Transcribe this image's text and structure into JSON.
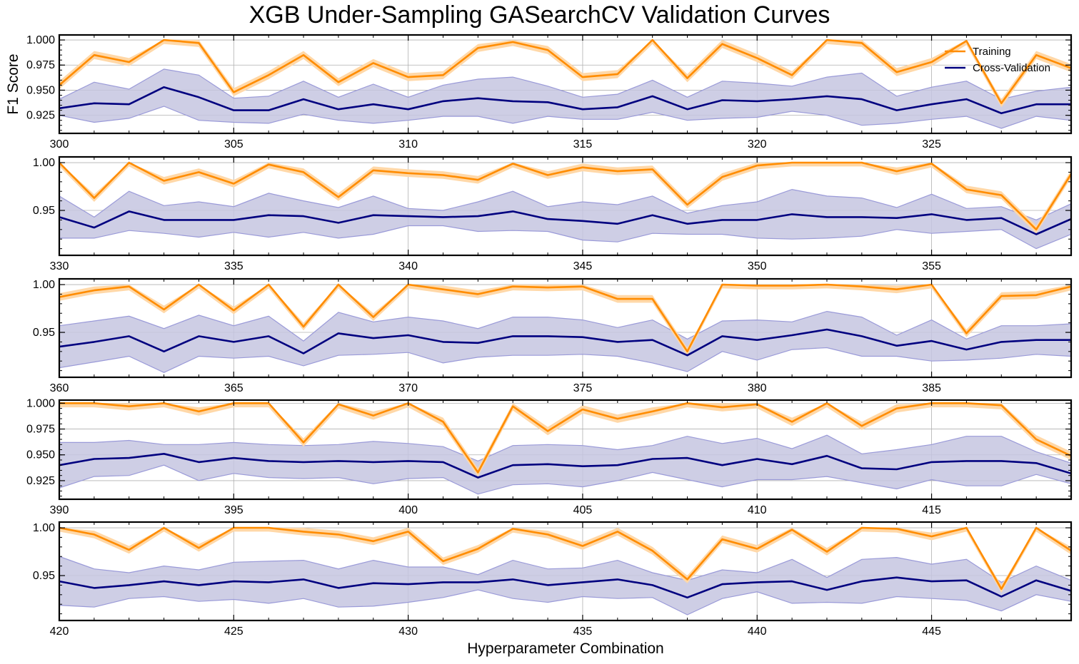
{
  "title": "XGB Under-Sampling GASearchCV Validation Curves",
  "ylabel": "F1 Score",
  "xlabel": "Hyperparameter Combination",
  "colors": {
    "training": "#ff8c00",
    "training_band": "#ffd8a8",
    "cv": "#00007f",
    "cv_band": "#c5c5e0",
    "grid": "#b0b0b0"
  },
  "chart_data": [
    {
      "type": "line",
      "x_start": 300,
      "xlim": [
        300,
        329
      ],
      "ylim": [
        0.907,
        1.005
      ],
      "xticks": [
        "300",
        "305",
        "310",
        "315",
        "320",
        "325"
      ],
      "yticks": [
        "0.925",
        "0.950",
        "0.975",
        "1.000"
      ],
      "grid": true,
      "legend": "top-right",
      "series": [
        {
          "name": "Training",
          "values": [
            0.955,
            0.985,
            0.978,
            1.0,
            0.997,
            0.948,
            0.965,
            0.985,
            0.958,
            0.977,
            0.963,
            0.965,
            0.992,
            0.998,
            0.99,
            0.963,
            0.966,
            1.0,
            0.962,
            0.996,
            0.982,
            0.965,
            1.0,
            0.997,
            0.968,
            0.978,
            0.999,
            0.937,
            0.985,
            0.972
          ],
          "band": 0.004
        },
        {
          "name": "Cross-Validation",
          "values": [
            0.932,
            0.937,
            0.936,
            0.953,
            0.943,
            0.93,
            0.93,
            0.941,
            0.931,
            0.936,
            0.931,
            0.939,
            0.942,
            0.939,
            0.938,
            0.931,
            0.933,
            0.944,
            0.931,
            0.94,
            0.939,
            0.941,
            0.944,
            0.941,
            0.93,
            0.936,
            0.941,
            0.927,
            0.936,
            0.936
          ],
          "upper": [
            0.941,
            0.958,
            0.951,
            0.971,
            0.965,
            0.942,
            0.944,
            0.959,
            0.943,
            0.956,
            0.943,
            0.955,
            0.961,
            0.963,
            0.954,
            0.943,
            0.946,
            0.96,
            0.943,
            0.959,
            0.957,
            0.954,
            0.963,
            0.967,
            0.944,
            0.953,
            0.959,
            0.941,
            0.949,
            0.953
          ],
          "lower": [
            0.925,
            0.918,
            0.922,
            0.934,
            0.92,
            0.918,
            0.917,
            0.926,
            0.92,
            0.917,
            0.92,
            0.924,
            0.924,
            0.917,
            0.924,
            0.921,
            0.921,
            0.928,
            0.92,
            0.922,
            0.923,
            0.929,
            0.925,
            0.915,
            0.917,
            0.921,
            0.924,
            0.912,
            0.924,
            0.92
          ]
        }
      ]
    },
    {
      "type": "line",
      "x_start": 330,
      "xlim": [
        330,
        359
      ],
      "ylim": [
        0.903,
        1.006
      ],
      "xticks": [
        "330",
        "335",
        "340",
        "345",
        "350",
        "355"
      ],
      "yticks": [
        "0.95",
        "1.00"
      ],
      "grid": true,
      "series": [
        {
          "name": "Training",
          "values": [
            1.0,
            0.963,
            1.0,
            0.981,
            0.99,
            0.978,
            0.998,
            0.99,
            0.964,
            0.992,
            0.989,
            0.987,
            0.982,
            0.999,
            0.987,
            0.995,
            0.991,
            0.993,
            0.956,
            0.985,
            0.997,
            1.0,
            1.0,
            1.0,
            0.991,
            0.999,
            0.972,
            0.966,
            0.93,
            0.988
          ],
          "band": 0.004
        },
        {
          "name": "Cross-Validation",
          "values": [
            0.943,
            0.932,
            0.949,
            0.94,
            0.94,
            0.94,
            0.945,
            0.944,
            0.937,
            0.945,
            0.944,
            0.943,
            0.944,
            0.949,
            0.941,
            0.939,
            0.936,
            0.945,
            0.936,
            0.94,
            0.94,
            0.946,
            0.943,
            0.943,
            0.942,
            0.946,
            0.94,
            0.942,
            0.925,
            0.941
          ],
          "upper": [
            0.965,
            0.943,
            0.97,
            0.955,
            0.959,
            0.954,
            0.968,
            0.96,
            0.953,
            0.965,
            0.952,
            0.95,
            0.959,
            0.97,
            0.954,
            0.959,
            0.956,
            0.965,
            0.947,
            0.955,
            0.959,
            0.972,
            0.965,
            0.963,
            0.953,
            0.967,
            0.952,
            0.954,
            0.94,
            0.957
          ],
          "lower": [
            0.921,
            0.921,
            0.929,
            0.926,
            0.922,
            0.927,
            0.922,
            0.927,
            0.921,
            0.925,
            0.934,
            0.934,
            0.928,
            0.929,
            0.928,
            0.919,
            0.917,
            0.926,
            0.925,
            0.925,
            0.921,
            0.92,
            0.921,
            0.923,
            0.93,
            0.926,
            0.928,
            0.93,
            0.91,
            0.925
          ]
        }
      ]
    },
    {
      "type": "line",
      "x_start": 360,
      "xlim": [
        360,
        389
      ],
      "ylim": [
        0.903,
        1.006
      ],
      "xticks": [
        "360",
        "365",
        "370",
        "375",
        "380",
        "385"
      ],
      "yticks": [
        "0.95",
        "1.00"
      ],
      "grid": true,
      "series": [
        {
          "name": "Training",
          "values": [
            0.987,
            0.994,
            0.998,
            0.974,
            1.0,
            0.973,
            1.0,
            0.956,
            1.0,
            0.966,
            1.0,
            0.995,
            0.99,
            0.998,
            0.997,
            0.998,
            0.985,
            0.985,
            0.93,
            1.0,
            0.999,
            0.999,
            1.0,
            0.998,
            0.995,
            1.0,
            0.949,
            0.988,
            0.989,
            0.998
          ],
          "band": 0.004
        },
        {
          "name": "Cross-Validation",
          "values": [
            0.935,
            0.94,
            0.946,
            0.93,
            0.946,
            0.94,
            0.946,
            0.928,
            0.949,
            0.944,
            0.947,
            0.94,
            0.939,
            0.946,
            0.946,
            0.945,
            0.94,
            0.942,
            0.926,
            0.946,
            0.942,
            0.947,
            0.953,
            0.946,
            0.936,
            0.941,
            0.932,
            0.94,
            0.942,
            0.942
          ],
          "upper": [
            0.957,
            0.962,
            0.967,
            0.954,
            0.968,
            0.957,
            0.967,
            0.941,
            0.971,
            0.961,
            0.966,
            0.962,
            0.954,
            0.966,
            0.966,
            0.963,
            0.955,
            0.963,
            0.943,
            0.962,
            0.963,
            0.961,
            0.972,
            0.966,
            0.947,
            0.963,
            0.943,
            0.957,
            0.957,
            0.959
          ],
          "lower": [
            0.913,
            0.919,
            0.925,
            0.908,
            0.925,
            0.923,
            0.925,
            0.915,
            0.926,
            0.927,
            0.929,
            0.918,
            0.924,
            0.926,
            0.926,
            0.927,
            0.925,
            0.918,
            0.909,
            0.93,
            0.921,
            0.932,
            0.934,
            0.925,
            0.925,
            0.92,
            0.921,
            0.923,
            0.927,
            0.925
          ]
        }
      ]
    },
    {
      "type": "line",
      "x_start": 390,
      "xlim": [
        390,
        419
      ],
      "ylim": [
        0.907,
        1.003
      ],
      "xticks": [
        "390",
        "395",
        "400",
        "405",
        "410",
        "415"
      ],
      "yticks": [
        "0.925",
        "0.950",
        "0.975",
        "1.000"
      ],
      "grid": true,
      "series": [
        {
          "name": "Training",
          "values": [
            1.0,
            1.0,
            0.997,
            1.0,
            0.992,
            1.0,
            1.0,
            0.962,
            0.999,
            0.988,
            1.0,
            0.982,
            0.933,
            0.997,
            0.973,
            0.994,
            0.985,
            0.992,
            1.0,
            0.996,
            0.999,
            0.982,
            1.0,
            0.978,
            0.995,
            1.0,
            1.0,
            0.998,
            0.965,
            0.949
          ],
          "band": 0.004
        },
        {
          "name": "Cross-Validation",
          "values": [
            0.94,
            0.946,
            0.947,
            0.951,
            0.943,
            0.947,
            0.944,
            0.943,
            0.944,
            0.943,
            0.944,
            0.943,
            0.928,
            0.94,
            0.941,
            0.939,
            0.94,
            0.946,
            0.947,
            0.94,
            0.946,
            0.941,
            0.949,
            0.937,
            0.936,
            0.943,
            0.944,
            0.944,
            0.942,
            0.932
          ],
          "upper": [
            0.962,
            0.962,
            0.964,
            0.96,
            0.96,
            0.962,
            0.96,
            0.959,
            0.96,
            0.963,
            0.961,
            0.958,
            0.944,
            0.959,
            0.96,
            0.959,
            0.955,
            0.959,
            0.968,
            0.961,
            0.966,
            0.956,
            0.969,
            0.951,
            0.955,
            0.96,
            0.968,
            0.968,
            0.953,
            0.942
          ],
          "lower": [
            0.918,
            0.929,
            0.93,
            0.94,
            0.925,
            0.932,
            0.928,
            0.927,
            0.928,
            0.922,
            0.927,
            0.928,
            0.912,
            0.921,
            0.922,
            0.919,
            0.925,
            0.933,
            0.926,
            0.919,
            0.926,
            0.926,
            0.929,
            0.923,
            0.917,
            0.926,
            0.92,
            0.92,
            0.931,
            0.922
          ]
        }
      ]
    },
    {
      "type": "line",
      "x_start": 420,
      "xlim": [
        420,
        449
      ],
      "ylim": [
        0.903,
        1.006
      ],
      "xticks": [
        "420",
        "425",
        "430",
        "435",
        "440",
        "445"
      ],
      "yticks": [
        "0.95",
        "1.00"
      ],
      "grid": true,
      "series": [
        {
          "name": "Training",
          "values": [
            1.0,
            0.993,
            0.977,
            1.0,
            0.979,
            1.0,
            1.0,
            0.996,
            0.993,
            0.986,
            0.996,
            0.965,
            0.978,
            0.999,
            0.993,
            0.981,
            0.996,
            0.976,
            0.946,
            0.988,
            0.978,
            0.998,
            0.975,
            1.0,
            0.999,
            0.991,
            1.0,
            0.936,
            1.0,
            0.976
          ],
          "band": 0.004
        },
        {
          "name": "Cross-Validation",
          "values": [
            0.944,
            0.937,
            0.94,
            0.944,
            0.94,
            0.944,
            0.943,
            0.946,
            0.937,
            0.942,
            0.941,
            0.943,
            0.943,
            0.946,
            0.94,
            0.943,
            0.946,
            0.94,
            0.927,
            0.941,
            0.943,
            0.944,
            0.935,
            0.944,
            0.948,
            0.944,
            0.945,
            0.928,
            0.945,
            0.934
          ],
          "upper": [
            0.97,
            0.957,
            0.953,
            0.96,
            0.956,
            0.964,
            0.965,
            0.966,
            0.957,
            0.966,
            0.959,
            0.959,
            0.951,
            0.966,
            0.957,
            0.958,
            0.966,
            0.953,
            0.945,
            0.956,
            0.953,
            0.967,
            0.948,
            0.967,
            0.969,
            0.962,
            0.967,
            0.943,
            0.96,
            0.945
          ],
          "lower": [
            0.919,
            0.917,
            0.926,
            0.928,
            0.923,
            0.925,
            0.921,
            0.926,
            0.917,
            0.918,
            0.922,
            0.927,
            0.935,
            0.926,
            0.922,
            0.928,
            0.926,
            0.927,
            0.909,
            0.926,
            0.933,
            0.921,
            0.922,
            0.921,
            0.928,
            0.926,
            0.924,
            0.913,
            0.93,
            0.923
          ]
        }
      ]
    }
  ]
}
